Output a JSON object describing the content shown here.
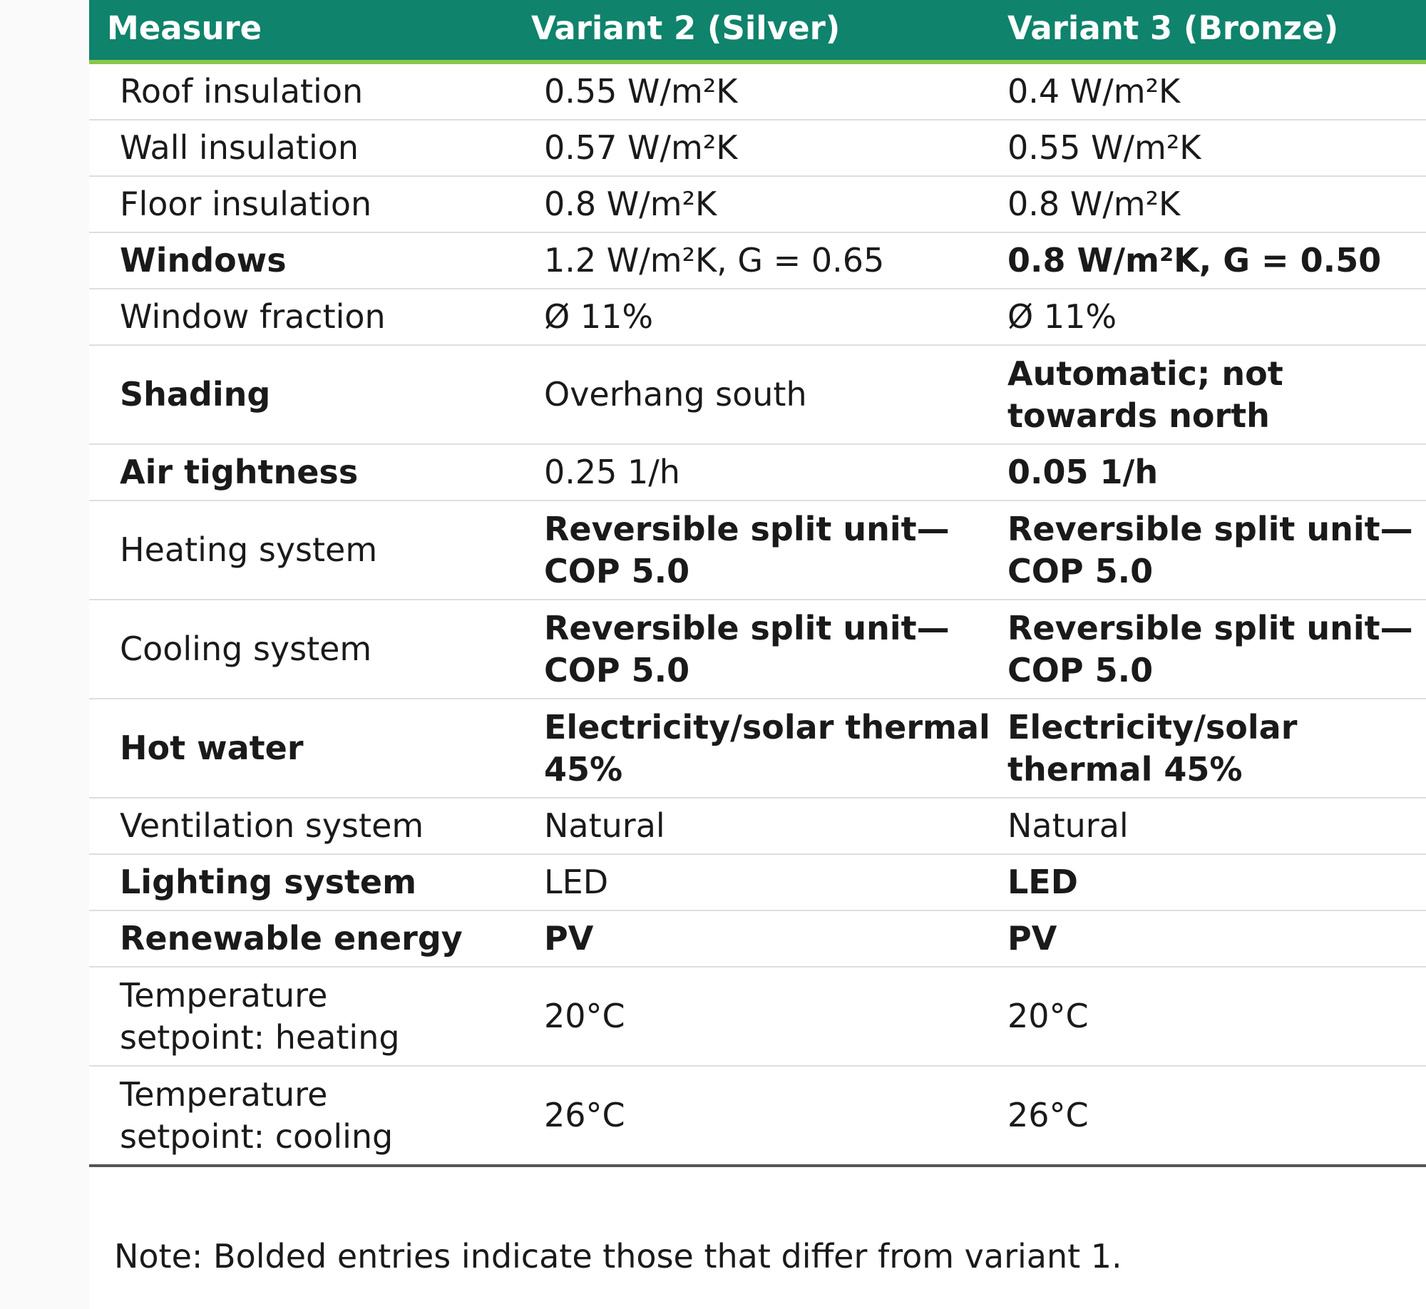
{
  "table": {
    "headers": [
      "Measure",
      "Variant 2 (Silver)",
      "Variant 3 (Bronze)"
    ],
    "header_color": "#0f836c",
    "header_rule_color": "#8ac649",
    "rows": [
      {
        "measure": "Roof insulation",
        "silver": "0.55 W/m²K",
        "bronze": "0.4 W/m²K",
        "bold": [
          false,
          false,
          false
        ]
      },
      {
        "measure": "Wall insulation",
        "silver": "0.57 W/m²K",
        "bronze": "0.55 W/m²K",
        "bold": [
          false,
          false,
          false
        ]
      },
      {
        "measure": "Floor insulation",
        "silver": "0.8 W/m²K",
        "bronze": "0.8 W/m²K",
        "bold": [
          false,
          false,
          false
        ]
      },
      {
        "measure": "Windows",
        "silver": "1.2 W/m²K, G = 0.65",
        "bronze": "0.8 W/m²K, G = 0.50",
        "bold": [
          true,
          false,
          true
        ]
      },
      {
        "measure": "Window fraction",
        "silver": "Ø 11%",
        "bronze": "Ø 11%",
        "bold": [
          false,
          false,
          false
        ]
      },
      {
        "measure": "Shading",
        "silver": "Overhang south",
        "bronze": "Automatic; not\ntowards north",
        "bold": [
          true,
          false,
          true
        ]
      },
      {
        "measure": "Air tightness",
        "silver": "0.25 1/h",
        "bronze": "0.05 1/h",
        "bold": [
          true,
          false,
          true
        ]
      },
      {
        "measure": "Heating system",
        "silver": "Reversible split unit—\nCOP 5.0",
        "bronze": "Reversible split unit—\nCOP 5.0",
        "bold": [
          false,
          true,
          true
        ]
      },
      {
        "measure": "Cooling system",
        "silver": "Reversible split unit—\nCOP 5.0",
        "bronze": "Reversible split unit—\nCOP 5.0",
        "bold": [
          false,
          true,
          true
        ]
      },
      {
        "measure": "Hot water",
        "silver": "Electricity/solar thermal\n45%",
        "bronze": "Electricity/solar\nthermal 45%",
        "bold": [
          true,
          true,
          true
        ]
      },
      {
        "measure": "Ventilation system",
        "silver": "Natural",
        "bronze": "Natural",
        "bold": [
          false,
          false,
          false
        ]
      },
      {
        "measure": "Lighting system",
        "silver": "LED",
        "bronze": "LED",
        "bold": [
          true,
          false,
          true
        ]
      },
      {
        "measure": "Renewable energy",
        "silver": "PV",
        "bronze": "PV",
        "bold": [
          true,
          true,
          true
        ]
      },
      {
        "measure": "Temperature\nsetpoint: heating",
        "silver": "20°C",
        "bronze": "20°C",
        "bold": [
          false,
          false,
          false
        ]
      },
      {
        "measure": "Temperature\nsetpoint: cooling",
        "silver": "26°C",
        "bronze": "26°C",
        "bold": [
          false,
          false,
          false
        ]
      }
    ]
  },
  "note": "Note: Bolded entries indicate those that differ from variant 1."
}
